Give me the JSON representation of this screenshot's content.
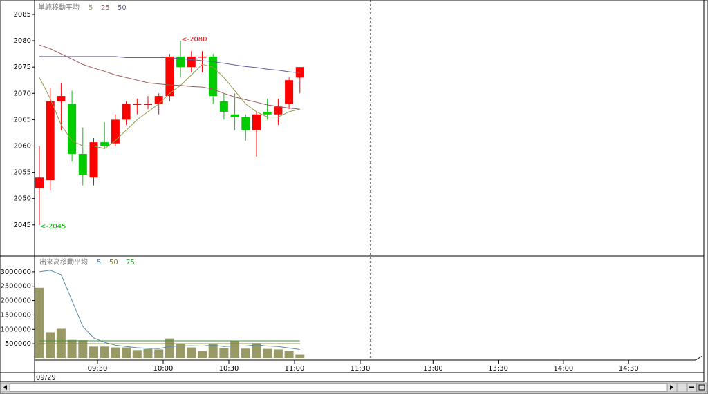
{
  "chart_data": [
    {
      "type": "candlestick",
      "title": "単純移動平均",
      "open": [
        2052,
        2053.5,
        2068.5,
        2068,
        2058.5,
        2054,
        2060.7,
        2060.5,
        2065,
        2068,
        2068,
        2068,
        2069.5,
        2077,
        2075,
        2077,
        2077,
        2068.5,
        2066,
        2065.5,
        2063,
        2066.5,
        2066,
        2068,
        2073
      ],
      "high": [
        2060,
        2071,
        2072,
        2070.5,
        2063.5,
        2061.5,
        2064.5,
        2066,
        2068.5,
        2069,
        2069.5,
        2070,
        2077.5,
        2080,
        2078,
        2078,
        2077.5,
        2070,
        2070,
        2066,
        2066.5,
        2069,
        2069,
        2073,
        2075
      ],
      "low": [
        2045,
        2051.5,
        2063,
        2057,
        2052.5,
        2052.5,
        2059.5,
        2060,
        2064,
        2066,
        2067,
        2066,
        2068.5,
        2073,
        2074,
        2074,
        2068,
        2065,
        2063,
        2061,
        2058,
        2065,
        2064,
        2067,
        2070
      ],
      "close": [
        2054,
        2068.5,
        2069.5,
        2058.5,
        2054.5,
        2060.7,
        2060,
        2065,
        2068,
        2068,
        2068,
        2069.5,
        2077,
        2075,
        2077,
        2077,
        2069.5,
        2066.5,
        2065.5,
        2063,
        2066,
        2066,
        2067.5,
        2072.5,
        2075
      ],
      "up_color": "#ff0000",
      "down_color": "#00cc00",
      "series": [
        {
          "name": "5",
          "color": "#99994d",
          "values": [
            2073,
            2069,
            2064,
            2061,
            2060,
            2060,
            2059.5,
            2061,
            2063,
            2065,
            2066.5,
            2068,
            2070,
            2071.5,
            2073.5,
            2075.5,
            2075,
            2073,
            2070.5,
            2068,
            2066.5,
            2065.5,
            2065.5,
            2066.5,
            2067
          ]
        },
        {
          "name": "25",
          "color": "#a05a5a",
          "values": [
            2079.2,
            2078.5,
            2077.5,
            2076.5,
            2075.5,
            2074.8,
            2074.2,
            2073.5,
            2073,
            2072.5,
            2072,
            2071.8,
            2071.6,
            2071.5,
            2071.3,
            2071.2,
            2070.8,
            2070,
            2069.3,
            2068.8,
            2068.3,
            2067.8,
            2067.5,
            2067.2,
            2067
          ]
        },
        {
          "name": "50",
          "color": "#6060a0",
          "values": [
            2077,
            2077,
            2077,
            2077,
            2077,
            2077,
            2077,
            2077,
            2076.8,
            2076.8,
            2076.8,
            2076.8,
            2076.8,
            2076.6,
            2076.4,
            2076.2,
            2076,
            2075.7,
            2075.4,
            2075.1,
            2074.9,
            2074.6,
            2074.4,
            2074.1,
            2073.9
          ]
        }
      ],
      "annotations": [
        {
          "text": "<-2080",
          "color": "#ff0000"
        },
        {
          "text": "<-2045",
          "color": "#00aa00"
        }
      ],
      "ylim": [
        2039.2,
        2087.75
      ],
      "yticks": [
        2045,
        2050,
        2055,
        2060,
        2065,
        2070,
        2075,
        2080,
        2085
      ]
    },
    {
      "type": "bar",
      "title": "出来高移動平均",
      "values": [
        2450000,
        900000,
        1020000,
        630000,
        620000,
        400000,
        400000,
        370000,
        370000,
        280000,
        320000,
        300000,
        680000,
        490000,
        370000,
        250000,
        510000,
        350000,
        590000,
        330000,
        520000,
        320000,
        300000,
        250000,
        130000
      ],
      "color": "#999966",
      "series": [
        {
          "name": "5",
          "color": "#5a8aa8",
          "values": [
            3000000,
            3050000,
            2900000,
            2000000,
            1100000,
            700000,
            550000,
            450000,
            400000,
            360000,
            340000,
            330000,
            400000,
            420000,
            430000,
            420000,
            450000,
            400000,
            420000,
            420000,
            460000,
            420000,
            400000,
            350000,
            300000
          ]
        },
        {
          "name": "50",
          "color": "#777733",
          "values": [
            500000,
            500000,
            500000,
            500000,
            500000,
            500000,
            500000,
            500000,
            500000,
            500000,
            500000,
            500000,
            500000,
            500000,
            500000,
            500000,
            500000,
            500000,
            500000,
            500000,
            500000,
            500000,
            500000,
            500000,
            500000
          ]
        },
        {
          "name": "75",
          "color": "#339933",
          "values": [
            600000,
            600000,
            600000,
            600000,
            600000,
            600000,
            600000,
            600000,
            600000,
            600000,
            600000,
            600000,
            600000,
            600000,
            600000,
            600000,
            600000,
            600000,
            600000,
            600000,
            600000,
            600000,
            600000,
            600000,
            600000
          ]
        }
      ],
      "ylim": [
        0,
        3500000
      ],
      "yticks": [
        500000,
        1000000,
        1500000,
        2000000,
        2500000,
        3000000
      ],
      "xticks": [
        "09:30",
        "10:00",
        "10:30",
        "11:00",
        "11:30",
        "13:00",
        "13:30",
        "14:00",
        "14:30"
      ],
      "date": "09/29"
    }
  ]
}
